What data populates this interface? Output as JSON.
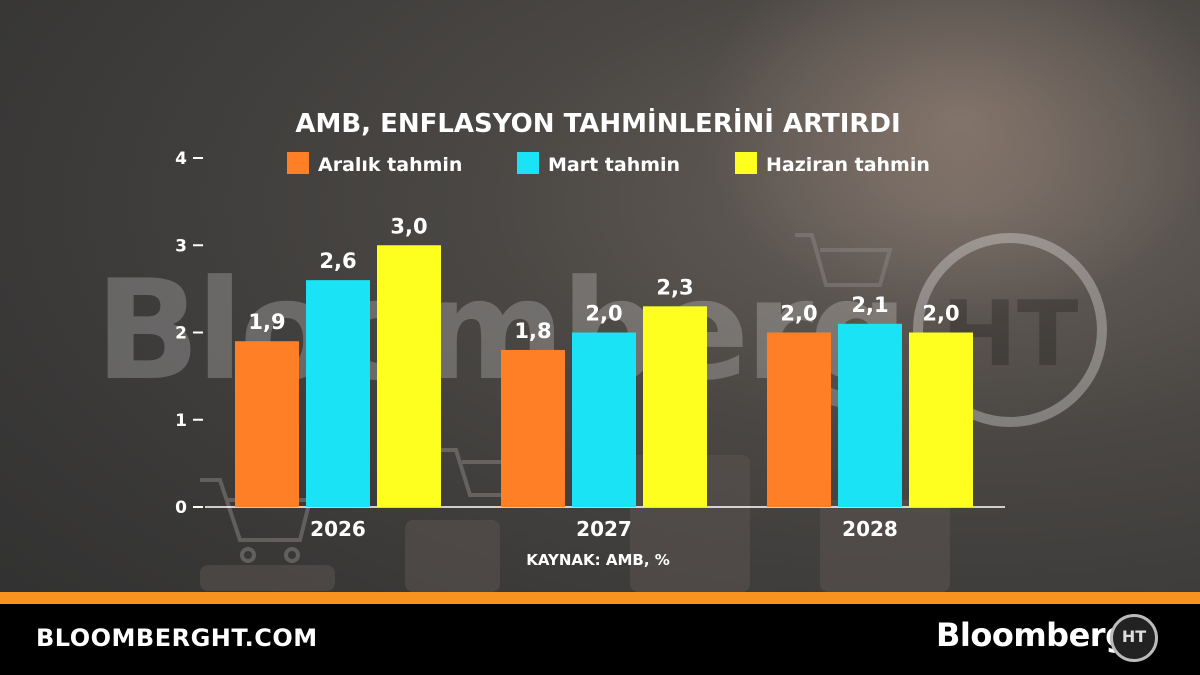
{
  "footer": {
    "site_url": "BLOOMBERGHT.COM",
    "brand": "Bloomberg",
    "badge": "HT"
  },
  "watermark": {
    "text": "Bloomberg",
    "badge": "HT"
  },
  "colors": {
    "orange": "#ff7f27",
    "cyan": "#1ae3f5",
    "yellow": "#ffff1f",
    "stripe": "#f7931e"
  },
  "chart_data": {
    "type": "bar",
    "title": "AMB, ENFLASYON TAHMİNLERİNİ ARTIRDI",
    "source": "KAYNAK: AMB, %",
    "categories": [
      "2026",
      "2027",
      "2028"
    ],
    "series": [
      {
        "name": "Aralık tahmin",
        "color": "#ff7f27",
        "values": [
          1.9,
          1.8,
          2.0
        ],
        "labels": [
          "1,9",
          "1,8",
          "2,0"
        ]
      },
      {
        "name": "Mart tahmin",
        "color": "#1ae3f5",
        "values": [
          2.6,
          2.0,
          2.1
        ],
        "labels": [
          "2,6",
          "2,0",
          "2,1"
        ]
      },
      {
        "name": "Haziran tahmin",
        "color": "#ffff1f",
        "values": [
          3.0,
          2.3,
          2.0
        ],
        "labels": [
          "3,0",
          "2,3",
          "2,0"
        ]
      }
    ],
    "yticks": [
      0,
      1,
      2,
      3,
      4
    ],
    "ylim": [
      0,
      4
    ],
    "legend_position": "top",
    "grid": false
  }
}
